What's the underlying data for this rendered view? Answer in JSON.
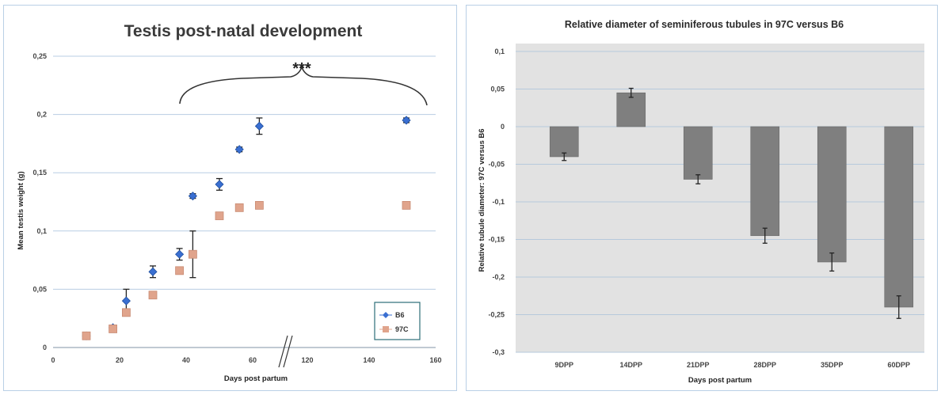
{
  "chart_data": [
    {
      "type": "scatter",
      "title": "Testis post-natal development",
      "xlabel": "Days post partum",
      "ylabel": "Mean testis weight (g)",
      "xticks": [
        "0",
        "20",
        "40",
        "60",
        "120",
        "140",
        "160"
      ],
      "yticks": [
        "0",
        "0,05",
        "0,1",
        "0,15",
        "0,2",
        "0,25"
      ],
      "ylim": [
        0,
        0.25
      ],
      "grid": "horizontal",
      "legend_position": "bottom-right",
      "annotation": "***",
      "series": [
        {
          "name": "B6",
          "color": "#3a6fd1",
          "x": [
            10,
            18,
            22,
            30,
            38,
            42,
            50,
            56,
            62,
            150
          ],
          "y": [
            0.01,
            0.017,
            0.04,
            0.065,
            0.08,
            0.13,
            0.14,
            0.17,
            0.19,
            0.195
          ],
          "err": [
            0.002,
            0.002,
            0.01,
            0.005,
            0.005,
            0.002,
            0.005,
            0.002,
            0.007,
            0.002
          ]
        },
        {
          "name": "97C",
          "color": "#e0a48c",
          "x": [
            10,
            18,
            22,
            30,
            38,
            42,
            50,
            56,
            62,
            150
          ],
          "y": [
            0.01,
            0.016,
            0.03,
            0.045,
            0.066,
            0.08,
            0.113,
            0.12,
            0.122,
            0.122
          ],
          "err": [
            0.002,
            0.002,
            0.003,
            0.003,
            0.003,
            0.02,
            0.003,
            0.002,
            0.003,
            0.003
          ]
        }
      ]
    },
    {
      "type": "bar",
      "title": "Relative diameter of seminiferous tubules in 97C versus B6",
      "xlabel": "Days post partum",
      "ylabel": "Relative tubule diameter: 97C versus B6",
      "categories": [
        "9DPP",
        "14DPP",
        "21DPP",
        "28DPP",
        "35DPP",
        "60DPP"
      ],
      "values": [
        -0.04,
        0.045,
        -0.07,
        -0.145,
        -0.18,
        -0.24
      ],
      "errors": [
        0.005,
        0.006,
        0.006,
        0.01,
        0.012,
        0.015
      ],
      "yticks": [
        "0,1",
        "0,05",
        "0",
        "-0,05",
        "-0,1",
        "-0,15",
        "-0,2",
        "-0,25",
        "-0,3"
      ],
      "ylim": [
        -0.3,
        0.1
      ],
      "bar_color": "#7f7f7f",
      "grid": "horizontal"
    }
  ]
}
